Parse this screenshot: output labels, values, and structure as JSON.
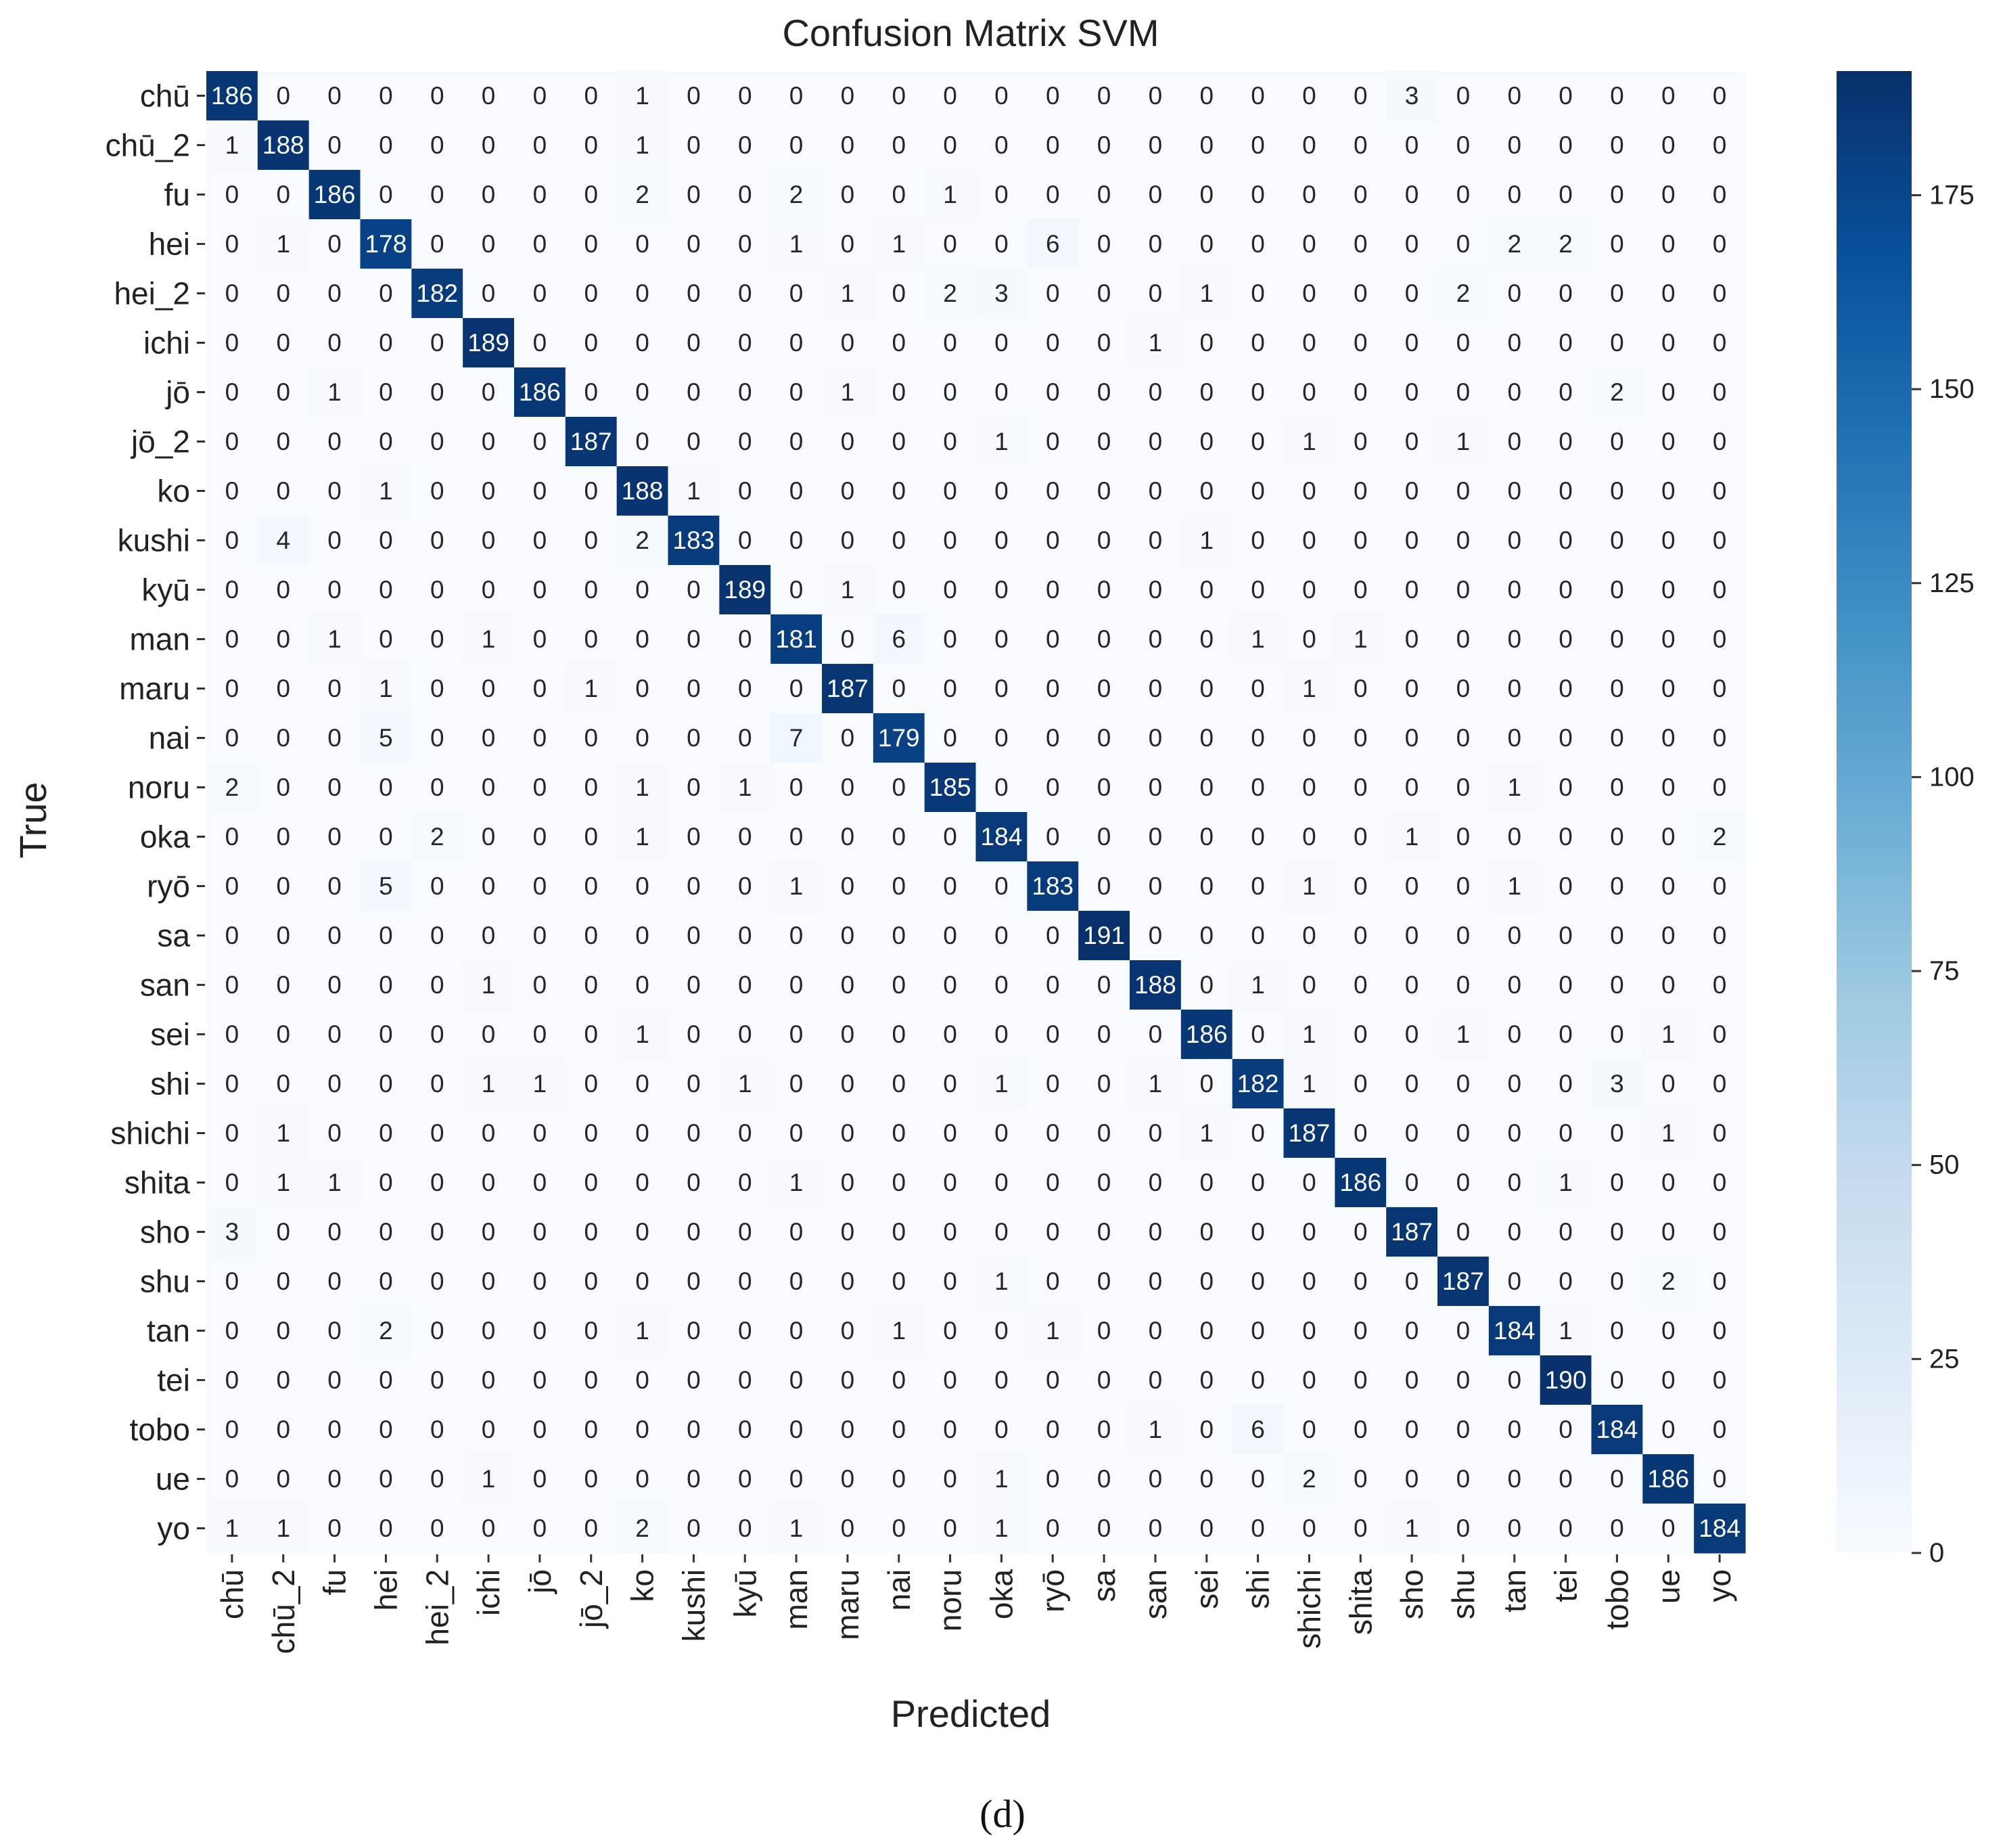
{
  "chart_data": {
    "type": "heatmap",
    "title": "Confusion Matrix SVM",
    "xlabel": "Predicted",
    "ylabel": "True",
    "caption": "(d)",
    "labels": [
      "chū",
      "chū_2",
      "fu",
      "hei",
      "hei_2",
      "ichi",
      "jō",
      "jō_2",
      "ko",
      "kushi",
      "kyū",
      "man",
      "maru",
      "nai",
      "noru",
      "oka",
      "ryō",
      "sa",
      "san",
      "sei",
      "shi",
      "shichi",
      "shita",
      "sho",
      "shu",
      "tan",
      "tei",
      "tobo",
      "ue",
      "yo"
    ],
    "matrix": [
      [
        186,
        0,
        0,
        0,
        0,
        0,
        0,
        0,
        1,
        0,
        0,
        0,
        0,
        0,
        0,
        0,
        0,
        0,
        0,
        0,
        0,
        0,
        0,
        3,
        0,
        0,
        0,
        0,
        0,
        0
      ],
      [
        1,
        188,
        0,
        0,
        0,
        0,
        0,
        0,
        1,
        0,
        0,
        0,
        0,
        0,
        0,
        0,
        0,
        0,
        0,
        0,
        0,
        0,
        0,
        0,
        0,
        0,
        0,
        0,
        0,
        0
      ],
      [
        0,
        0,
        186,
        0,
        0,
        0,
        0,
        0,
        2,
        0,
        0,
        2,
        0,
        0,
        1,
        0,
        0,
        0,
        0,
        0,
        0,
        0,
        0,
        0,
        0,
        0,
        0,
        0,
        0,
        0
      ],
      [
        0,
        1,
        0,
        178,
        0,
        0,
        0,
        0,
        0,
        0,
        0,
        1,
        0,
        1,
        0,
        0,
        6,
        0,
        0,
        0,
        0,
        0,
        0,
        0,
        0,
        2,
        2,
        0,
        0,
        0
      ],
      [
        0,
        0,
        0,
        0,
        182,
        0,
        0,
        0,
        0,
        0,
        0,
        0,
        1,
        0,
        2,
        3,
        0,
        0,
        0,
        1,
        0,
        0,
        0,
        0,
        2,
        0,
        0,
        0,
        0,
        0
      ],
      [
        0,
        0,
        0,
        0,
        0,
        189,
        0,
        0,
        0,
        0,
        0,
        0,
        0,
        0,
        0,
        0,
        0,
        0,
        1,
        0,
        0,
        0,
        0,
        0,
        0,
        0,
        0,
        0,
        0,
        0
      ],
      [
        0,
        0,
        1,
        0,
        0,
        0,
        186,
        0,
        0,
        0,
        0,
        0,
        1,
        0,
        0,
        0,
        0,
        0,
        0,
        0,
        0,
        0,
        0,
        0,
        0,
        0,
        0,
        2,
        0,
        0
      ],
      [
        0,
        0,
        0,
        0,
        0,
        0,
        0,
        187,
        0,
        0,
        0,
        0,
        0,
        0,
        0,
        1,
        0,
        0,
        0,
        0,
        0,
        1,
        0,
        0,
        1,
        0,
        0,
        0,
        0,
        0
      ],
      [
        0,
        0,
        0,
        1,
        0,
        0,
        0,
        0,
        188,
        1,
        0,
        0,
        0,
        0,
        0,
        0,
        0,
        0,
        0,
        0,
        0,
        0,
        0,
        0,
        0,
        0,
        0,
        0,
        0,
        0
      ],
      [
        0,
        4,
        0,
        0,
        0,
        0,
        0,
        0,
        2,
        183,
        0,
        0,
        0,
        0,
        0,
        0,
        0,
        0,
        0,
        1,
        0,
        0,
        0,
        0,
        0,
        0,
        0,
        0,
        0,
        0
      ],
      [
        0,
        0,
        0,
        0,
        0,
        0,
        0,
        0,
        0,
        0,
        189,
        0,
        1,
        0,
        0,
        0,
        0,
        0,
        0,
        0,
        0,
        0,
        0,
        0,
        0,
        0,
        0,
        0,
        0,
        0
      ],
      [
        0,
        0,
        1,
        0,
        0,
        1,
        0,
        0,
        0,
        0,
        0,
        181,
        0,
        6,
        0,
        0,
        0,
        0,
        0,
        0,
        1,
        0,
        1,
        0,
        0,
        0,
        0,
        0,
        0,
        0
      ],
      [
        0,
        0,
        0,
        1,
        0,
        0,
        0,
        1,
        0,
        0,
        0,
        0,
        187,
        0,
        0,
        0,
        0,
        0,
        0,
        0,
        0,
        1,
        0,
        0,
        0,
        0,
        0,
        0,
        0,
        0
      ],
      [
        0,
        0,
        0,
        5,
        0,
        0,
        0,
        0,
        0,
        0,
        0,
        7,
        0,
        179,
        0,
        0,
        0,
        0,
        0,
        0,
        0,
        0,
        0,
        0,
        0,
        0,
        0,
        0,
        0,
        0
      ],
      [
        2,
        0,
        0,
        0,
        0,
        0,
        0,
        0,
        1,
        0,
        1,
        0,
        0,
        0,
        185,
        0,
        0,
        0,
        0,
        0,
        0,
        0,
        0,
        0,
        0,
        1,
        0,
        0,
        0,
        0
      ],
      [
        0,
        0,
        0,
        0,
        2,
        0,
        0,
        0,
        1,
        0,
        0,
        0,
        0,
        0,
        0,
        184,
        0,
        0,
        0,
        0,
        0,
        0,
        0,
        1,
        0,
        0,
        0,
        0,
        0,
        2
      ],
      [
        0,
        0,
        0,
        5,
        0,
        0,
        0,
        0,
        0,
        0,
        0,
        1,
        0,
        0,
        0,
        0,
        183,
        0,
        0,
        0,
        0,
        1,
        0,
        0,
        0,
        1,
        0,
        0,
        0,
        0
      ],
      [
        0,
        0,
        0,
        0,
        0,
        0,
        0,
        0,
        0,
        0,
        0,
        0,
        0,
        0,
        0,
        0,
        0,
        191,
        0,
        0,
        0,
        0,
        0,
        0,
        0,
        0,
        0,
        0,
        0,
        0
      ],
      [
        0,
        0,
        0,
        0,
        0,
        1,
        0,
        0,
        0,
        0,
        0,
        0,
        0,
        0,
        0,
        0,
        0,
        0,
        188,
        0,
        1,
        0,
        0,
        0,
        0,
        0,
        0,
        0,
        0,
        0
      ],
      [
        0,
        0,
        0,
        0,
        0,
        0,
        0,
        0,
        1,
        0,
        0,
        0,
        0,
        0,
        0,
        0,
        0,
        0,
        0,
        186,
        0,
        1,
        0,
        0,
        1,
        0,
        0,
        0,
        1,
        0
      ],
      [
        0,
        0,
        0,
        0,
        0,
        1,
        1,
        0,
        0,
        0,
        1,
        0,
        0,
        0,
        0,
        1,
        0,
        0,
        1,
        0,
        182,
        1,
        0,
        0,
        0,
        0,
        0,
        3,
        0,
        0
      ],
      [
        0,
        1,
        0,
        0,
        0,
        0,
        0,
        0,
        0,
        0,
        0,
        0,
        0,
        0,
        0,
        0,
        0,
        0,
        0,
        1,
        0,
        187,
        0,
        0,
        0,
        0,
        0,
        0,
        1,
        0
      ],
      [
        0,
        1,
        1,
        0,
        0,
        0,
        0,
        0,
        0,
        0,
        0,
        1,
        0,
        0,
        0,
        0,
        0,
        0,
        0,
        0,
        0,
        0,
        186,
        0,
        0,
        0,
        1,
        0,
        0,
        0
      ],
      [
        3,
        0,
        0,
        0,
        0,
        0,
        0,
        0,
        0,
        0,
        0,
        0,
        0,
        0,
        0,
        0,
        0,
        0,
        0,
        0,
        0,
        0,
        0,
        187,
        0,
        0,
        0,
        0,
        0,
        0
      ],
      [
        0,
        0,
        0,
        0,
        0,
        0,
        0,
        0,
        0,
        0,
        0,
        0,
        0,
        0,
        0,
        1,
        0,
        0,
        0,
        0,
        0,
        0,
        0,
        0,
        187,
        0,
        0,
        0,
        2,
        0
      ],
      [
        0,
        0,
        0,
        2,
        0,
        0,
        0,
        0,
        1,
        0,
        0,
        0,
        0,
        1,
        0,
        0,
        1,
        0,
        0,
        0,
        0,
        0,
        0,
        0,
        0,
        184,
        1,
        0,
        0,
        0
      ],
      [
        0,
        0,
        0,
        0,
        0,
        0,
        0,
        0,
        0,
        0,
        0,
        0,
        0,
        0,
        0,
        0,
        0,
        0,
        0,
        0,
        0,
        0,
        0,
        0,
        0,
        0,
        190,
        0,
        0,
        0
      ],
      [
        0,
        0,
        0,
        0,
        0,
        0,
        0,
        0,
        0,
        0,
        0,
        0,
        0,
        0,
        0,
        0,
        0,
        0,
        1,
        0,
        6,
        0,
        0,
        0,
        0,
        0,
        0,
        184,
        0,
        0
      ],
      [
        0,
        0,
        0,
        0,
        0,
        1,
        0,
        0,
        0,
        0,
        0,
        0,
        0,
        0,
        0,
        1,
        0,
        0,
        0,
        0,
        0,
        2,
        0,
        0,
        0,
        0,
        0,
        0,
        186,
        0
      ],
      [
        1,
        1,
        0,
        0,
        0,
        0,
        0,
        0,
        2,
        0,
        0,
        1,
        0,
        0,
        0,
        1,
        0,
        0,
        0,
        0,
        0,
        0,
        0,
        1,
        0,
        0,
        0,
        0,
        0,
        184
      ]
    ],
    "colorbar": {
      "range": [
        0,
        191
      ],
      "ticks": [
        0,
        25,
        50,
        75,
        100,
        125,
        150,
        175
      ],
      "colors": [
        "#f7fbff",
        "#deebf7",
        "#c6dbef",
        "#9ecae1",
        "#6baed6",
        "#4292c6",
        "#2171b5",
        "#08519c",
        "#08306b"
      ]
    }
  }
}
